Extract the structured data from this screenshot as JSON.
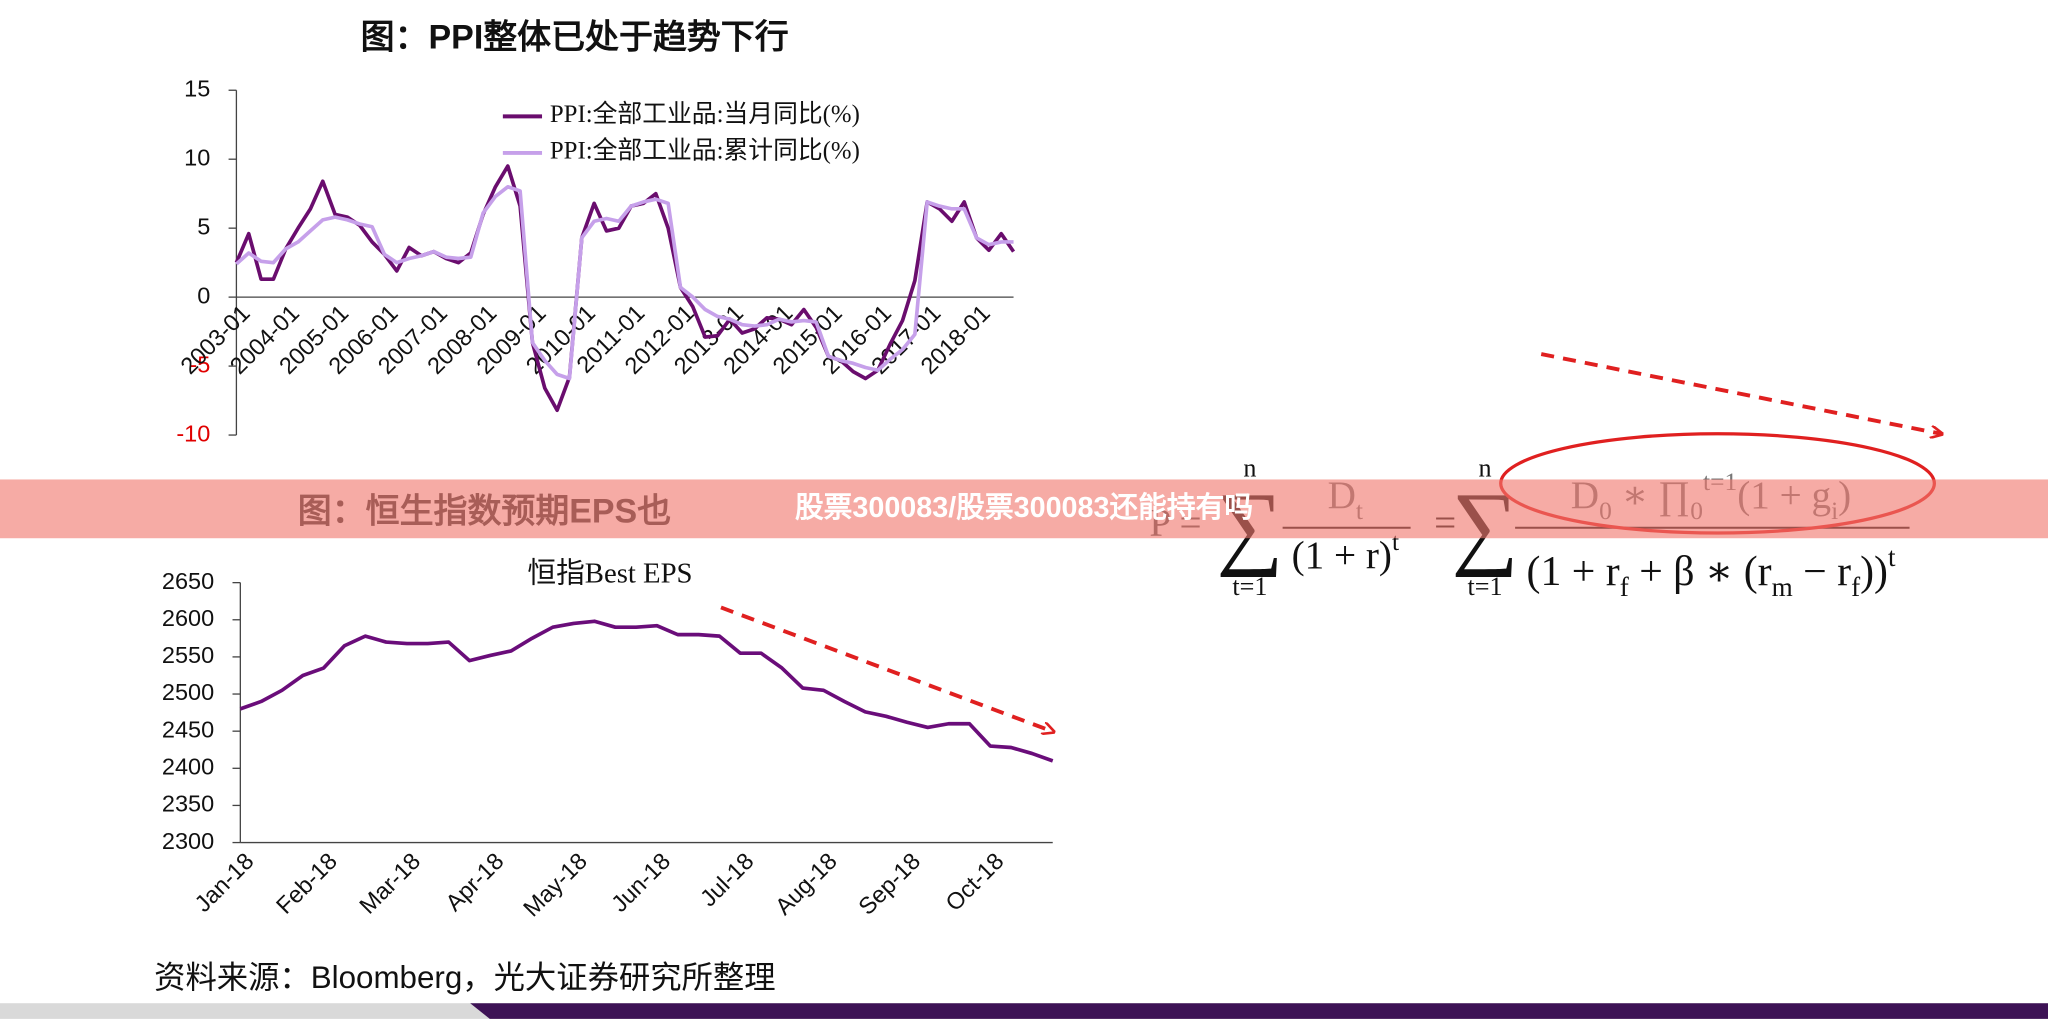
{
  "chart_data": [
    {
      "type": "line",
      "title": "图：PPI整体已处于趋势下行",
      "categories": [
        "2003-01",
        null,
        null,
        null,
        "2004-01",
        null,
        null,
        null,
        "2005-01",
        null,
        null,
        null,
        "2006-01",
        null,
        null,
        null,
        "2007-01",
        null,
        null,
        null,
        "2008-01",
        null,
        null,
        null,
        "2009-01",
        null,
        null,
        null,
        "2010-01",
        null,
        null,
        null,
        "2011-01",
        null,
        null,
        null,
        "2012-01",
        null,
        null,
        null,
        "2013-01",
        null,
        null,
        null,
        "2014-01",
        null,
        null,
        null,
        "2015-01",
        null,
        null,
        null,
        "2016-01",
        null,
        null,
        null,
        "2017-01",
        null,
        null,
        null,
        "2018-01",
        null,
        null,
        null
      ],
      "series": [
        {
          "name": "PPI:全部工业品:当月同比(%)",
          "color": "#6a0d6e",
          "values": [
            2.5,
            4.6,
            1.3,
            1.3,
            3.5,
            5.0,
            6.4,
            8.4,
            6.0,
            5.8,
            5.2,
            4.0,
            3.1,
            1.9,
            3.6,
            3.0,
            3.3,
            2.8,
            2.5,
            3.2,
            6.0,
            8.0,
            9.5,
            6.6,
            -3.3,
            -6.6,
            -8.2,
            -5.8,
            4.3,
            6.8,
            4.8,
            5.0,
            6.6,
            6.8,
            7.5,
            5.0,
            0.7,
            -0.7,
            -2.9,
            -2.8,
            -1.6,
            -2.6,
            -2.3,
            -1.5,
            -1.6,
            -2.0,
            -0.9,
            -2.2,
            -4.3,
            -4.6,
            -5.4,
            -5.9,
            -5.3,
            -3.4,
            -1.7,
            1.2,
            6.9,
            6.4,
            5.5,
            6.9,
            4.3,
            3.4,
            4.6,
            3.3
          ]
        },
        {
          "name": "PPI:全部工业品:累计同比(%)",
          "color": "#c6a0ea",
          "values": [
            2.4,
            3.2,
            2.6,
            2.5,
            3.5,
            4.0,
            4.8,
            5.6,
            5.8,
            5.6,
            5.3,
            5.1,
            3.1,
            2.5,
            2.8,
            3.0,
            3.3,
            2.9,
            2.8,
            2.9,
            6.1,
            7.3,
            8.0,
            7.7,
            -3.3,
            -4.6,
            -5.6,
            -5.9,
            4.3,
            5.5,
            5.7,
            5.5,
            6.6,
            6.9,
            7.1,
            6.8,
            0.7,
            0.0,
            -0.9,
            -1.4,
            -1.6,
            -2.0,
            -2.1,
            -2.0,
            -1.6,
            -1.8,
            -1.7,
            -1.8,
            -4.3,
            -4.6,
            -4.8,
            -5.1,
            -5.3,
            -4.5,
            -3.8,
            -2.7,
            6.9,
            6.6,
            6.4,
            6.4,
            4.3,
            3.8,
            4.0,
            4.0
          ]
        }
      ],
      "ylim": [
        -10,
        15
      ],
      "yticks": [
        15,
        10,
        5,
        0,
        -5,
        -10
      ],
      "negative_tick_color": "#e00000",
      "legend": "top"
    },
    {
      "type": "line",
      "title": "恒指Best EPS",
      "categories": [
        "Jan-18",
        null,
        null,
        null,
        "Feb-18",
        null,
        null,
        null,
        "Mar-18",
        null,
        null,
        null,
        "Apr-18",
        null,
        null,
        null,
        "May-18",
        null,
        null,
        null,
        "Jun-18",
        null,
        null,
        null,
        "Jul-18",
        null,
        null,
        null,
        "Aug-18",
        null,
        null,
        null,
        "Sep-18",
        null,
        null,
        null,
        "Oct-18",
        null,
        null,
        null
      ],
      "series": [
        {
          "color": "#6a0d7a",
          "values": [
            2480,
            2490,
            2505,
            2525,
            2535,
            2565,
            2578,
            2570,
            2568,
            2568,
            2570,
            2545,
            2552,
            2558,
            2575,
            2590,
            2595,
            2598,
            2590,
            2590,
            2592,
            2580,
            2580,
            2578,
            2555,
            2555,
            2535,
            2508,
            2505,
            2490,
            2476,
            2470,
            2462,
            2455,
            2460,
            2460,
            2430,
            2428,
            2420,
            2410
          ]
        }
      ],
      "ylim": [
        2300,
        2650
      ],
      "yticks": [
        2650,
        2600,
        2550,
        2500,
        2450,
        2400,
        2350,
        2300
      ]
    }
  ],
  "hidden_title": "图：恒生指数预期EPS也",
  "formula": {
    "lhs": "P =",
    "eq": "=",
    "sums": [
      {
        "sigma": "∑",
        "top": "n",
        "bottom": "t=1"
      },
      {
        "sigma": "∑",
        "top": "n",
        "bottom": "t=1"
      }
    ],
    "fraction1": {
      "num": [
        {
          "text": "D",
          "pos": "base"
        },
        {
          "text": "t",
          "pos": "sub"
        }
      ],
      "den": [
        {
          "text": "(1 + r)",
          "pos": "base"
        },
        {
          "text": "t",
          "pos": "sup"
        }
      ]
    },
    "fraction2": {
      "num": [
        {
          "text": "D",
          "pos": "base"
        },
        {
          "text": "0",
          "pos": "sub"
        },
        {
          "text": " ∗ ∏",
          "pos": "base"
        },
        {
          "text": "0",
          "pos": "sub"
        },
        {
          "text": "t=1",
          "pos": "sup"
        },
        {
          "text": "(1 + g",
          "pos": "base"
        },
        {
          "text": "i",
          "pos": "sub"
        },
        {
          "text": ")",
          "pos": "base"
        }
      ],
      "den": [
        {
          "text": "(1 + r",
          "pos": "base"
        },
        {
          "text": "f",
          "pos": "sub"
        },
        {
          "text": " + β ∗ (r",
          "pos": "base"
        },
        {
          "text": "m",
          "pos": "sub"
        },
        {
          "text": " − r",
          "pos": "base"
        },
        {
          "text": "f",
          "pos": "sub"
        },
        {
          "text": "))",
          "pos": "base"
        },
        {
          "text": "t",
          "pos": "sup"
        }
      ]
    }
  },
  "source": "资料来源：Bloomberg，光大证券研究所整理",
  "banner": "股票300083/股票300083还能持有吗"
}
